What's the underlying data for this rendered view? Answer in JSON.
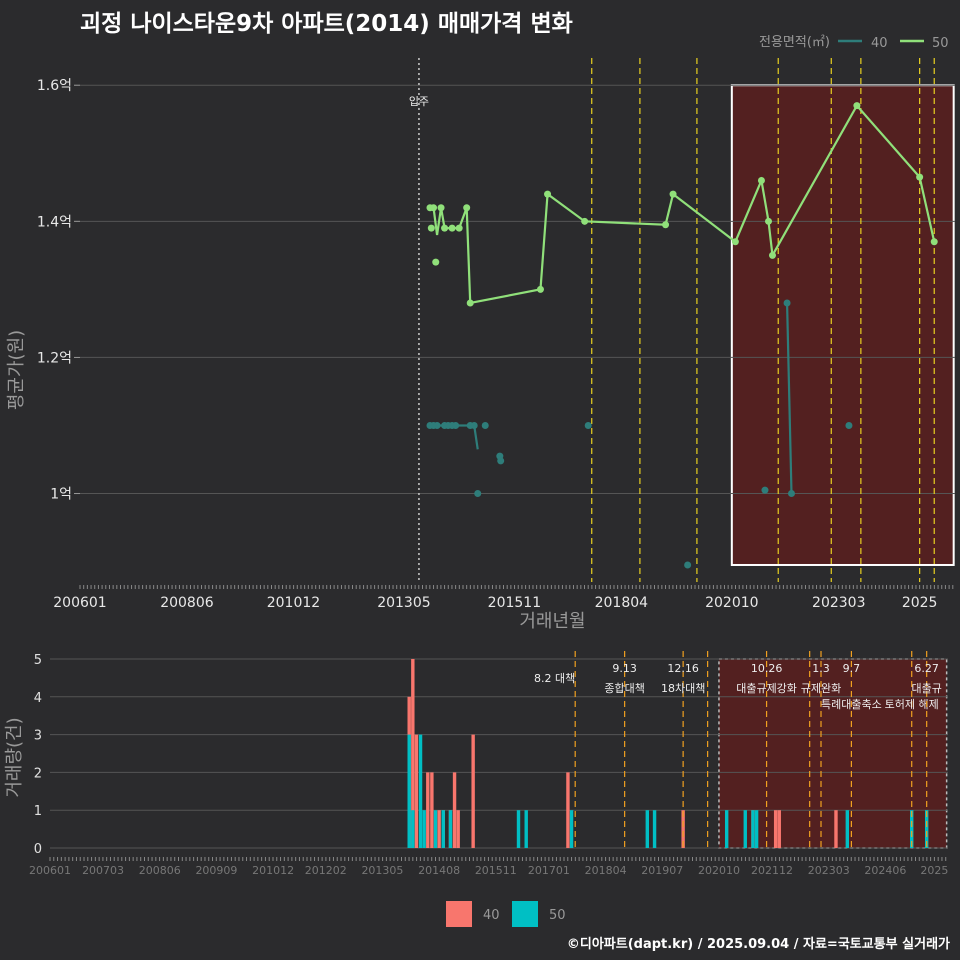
{
  "title": "괴정 나이스타운9차 아파트(2014) 매매가격 변화",
  "credit": "©디아파트(dapt.kr) / 2025.09.04 / 자료=국토교통부 실거래가",
  "colors": {
    "bg": "#2b2b2d",
    "grid": "#555555",
    "line40": "#2e7d7a",
    "line50": "#90e07a",
    "bar40": "#f8766d",
    "bar50": "#00bfc4",
    "vline": "#e8d020",
    "vline2": "#f0a020",
    "highlight": "#5a1e1e",
    "highlight_box": "#ffffff",
    "movein": "#cccccc"
  },
  "chart_data": [
    {
      "type": "line",
      "title": "괴정 나이스타운9차 아파트(2014) 매매가격 변화",
      "xlabel": "거래년월",
      "ylabel": "평균가(원)",
      "ylim": [
        0.87,
        1.64
      ],
      "xlim": [
        2006.0,
        2025.8
      ],
      "yticks": [
        1.0,
        1.2,
        1.4,
        1.6
      ],
      "ytick_labels": [
        "1억",
        "1.2억",
        "1.4억",
        "1.6억"
      ],
      "xticks": [
        2006.0,
        2008.42,
        2010.83,
        2013.33,
        2015.83,
        2018.25,
        2020.75,
        2023.17,
        2025.0
      ],
      "xtick_labels": [
        "200601",
        "200806",
        "201012",
        "201305",
        "201511",
        "201804",
        "202010",
        "202303",
        "2025"
      ],
      "legend": {
        "title": "전용면적(㎡)",
        "position": "top-right",
        "items": [
          "40",
          "50"
        ]
      },
      "movein": {
        "x": 2013.67,
        "label": "입주"
      },
      "highlight_range": [
        2020.75,
        2025.77
      ],
      "policy_lines": [
        2017.58,
        2018.67,
        2019.96,
        2021.8,
        2023.0,
        2023.67,
        2025.0,
        2025.33
      ],
      "series": [
        {
          "name": "40",
          "line": [
            [
              2013.92,
              1.1
            ],
            [
              2014.0,
              1.1
            ],
            [
              2014.17,
              1.1
            ],
            [
              2014.33,
              1.1
            ],
            [
              2014.5,
              1.1
            ],
            [
              2014.67,
              1.1
            ],
            [
              2014.83,
              1.1
            ],
            [
              2014.92,
              1.1
            ],
            [
              2015.0,
              1.065
            ]
          ],
          "line2": [
            [
              2022.0,
              1.28
            ],
            [
              2022.1,
              1.0
            ]
          ],
          "points": [
            [
              2013.92,
              1.1
            ],
            [
              2014.0,
              1.1
            ],
            [
              2014.08,
              1.1
            ],
            [
              2014.25,
              1.1
            ],
            [
              2014.33,
              1.1
            ],
            [
              2014.42,
              1.1
            ],
            [
              2014.5,
              1.1
            ],
            [
              2014.83,
              1.1
            ],
            [
              2014.92,
              1.1
            ],
            [
              2015.0,
              1.0
            ],
            [
              2015.17,
              1.1
            ],
            [
              2015.5,
              1.055
            ],
            [
              2015.52,
              1.048
            ],
            [
              2017.5,
              1.1
            ],
            [
              2019.75,
              0.895
            ],
            [
              2021.5,
              1.005
            ],
            [
              2022.0,
              1.28
            ],
            [
              2022.1,
              1.0
            ],
            [
              2023.4,
              1.1
            ]
          ]
        },
        {
          "name": "50",
          "line": [
            [
              2013.92,
              1.42
            ],
            [
              2014.0,
              1.42
            ],
            [
              2014.08,
              1.38
            ],
            [
              2014.17,
              1.42
            ],
            [
              2014.25,
              1.39
            ],
            [
              2014.42,
              1.39
            ],
            [
              2014.58,
              1.39
            ],
            [
              2014.75,
              1.42
            ],
            [
              2014.83,
              1.28
            ],
            [
              2016.42,
              1.3
            ],
            [
              2016.58,
              1.44
            ],
            [
              2017.42,
              1.4
            ],
            [
              2019.25,
              1.395
            ],
            [
              2019.42,
              1.44
            ],
            [
              2020.83,
              1.37
            ],
            [
              2021.42,
              1.46
            ],
            [
              2021.58,
              1.4
            ],
            [
              2021.67,
              1.35
            ],
            [
              2023.58,
              1.57
            ],
            [
              2025.0,
              1.465
            ],
            [
              2025.33,
              1.37
            ]
          ],
          "points": [
            [
              2013.92,
              1.42
            ],
            [
              2013.95,
              1.39
            ],
            [
              2014.0,
              1.42
            ],
            [
              2014.05,
              1.34
            ],
            [
              2014.17,
              1.42
            ],
            [
              2014.25,
              1.39
            ],
            [
              2014.42,
              1.39
            ],
            [
              2014.58,
              1.39
            ],
            [
              2014.75,
              1.42
            ],
            [
              2014.83,
              1.28
            ],
            [
              2016.42,
              1.3
            ],
            [
              2016.58,
              1.44
            ],
            [
              2017.42,
              1.4
            ],
            [
              2019.25,
              1.395
            ],
            [
              2019.42,
              1.44
            ],
            [
              2020.83,
              1.37
            ],
            [
              2021.42,
              1.46
            ],
            [
              2021.58,
              1.4
            ],
            [
              2021.67,
              1.35
            ],
            [
              2023.58,
              1.57
            ],
            [
              2025.0,
              1.465
            ],
            [
              2025.33,
              1.37
            ]
          ]
        }
      ]
    },
    {
      "type": "bar",
      "ylabel": "거래량(건)",
      "ylim": [
        0,
        5
      ],
      "yticks": [
        0,
        1,
        2,
        3,
        4,
        5
      ],
      "ytick_labels": [
        "0",
        "1",
        "2",
        "3",
        "4",
        "5"
      ],
      "xtick_labels": [
        "200601",
        "200703",
        "200806",
        "200909",
        "201012",
        "201202",
        "201305",
        "201408",
        "201511",
        "201701",
        "201804",
        "201907",
        "202010",
        "202112",
        "202303",
        "202406",
        "2025"
      ],
      "xticks": [
        2006.0,
        2007.17,
        2008.42,
        2009.67,
        2010.92,
        2012.08,
        2013.33,
        2014.58,
        2015.83,
        2017.0,
        2018.25,
        2019.5,
        2020.75,
        2021.92,
        2023.17,
        2024.42,
        2025.5
      ],
      "highlight_range": [
        2020.75,
        2025.77
      ],
      "policy_lines": [
        {
          "x": 2017.58,
          "label": "8.2 대책",
          "label2": ""
        },
        {
          "x": 2018.67,
          "label": "9.13",
          "label2": "종합대책"
        },
        {
          "x": 2019.96,
          "label": "12.16",
          "label2": "18차대책"
        },
        {
          "x": 2020.5,
          "label": "",
          "label2": ""
        },
        {
          "x": 2021.8,
          "label": "10.26",
          "label2": "대출규제강화"
        },
        {
          "x": 2022.75,
          "label": "",
          "label2": ""
        },
        {
          "x": 2023.0,
          "label": "1.3",
          "label2": "규제완화"
        },
        {
          "x": 2023.67,
          "label": "9.7",
          "label2": "특례대출축소"
        },
        {
          "x": 2025.0,
          "label": "",
          "label2": "토허제 해제"
        },
        {
          "x": 2025.33,
          "label": "6.27",
          "label2": "대출규"
        }
      ],
      "series": [
        {
          "name": "40",
          "bars": [
            [
              2013.92,
              4
            ],
            [
              2014.0,
              5
            ],
            [
              2014.08,
              3
            ],
            [
              2014.33,
              2
            ],
            [
              2014.42,
              2
            ],
            [
              2014.58,
              1
            ],
            [
              2014.67,
              1
            ],
            [
              2014.83,
              1
            ],
            [
              2014.92,
              2
            ],
            [
              2015.0,
              1
            ],
            [
              2015.33,
              3
            ],
            [
              2017.42,
              2
            ],
            [
              2019.96,
              1
            ],
            [
              2021.5,
              1
            ],
            [
              2022.0,
              1
            ],
            [
              2022.08,
              1
            ],
            [
              2023.33,
              1
            ]
          ]
        },
        {
          "name": "50",
          "bars": [
            [
              2013.92,
              3
            ],
            [
              2014.0,
              1
            ],
            [
              2014.17,
              3
            ],
            [
              2014.25,
              1
            ],
            [
              2014.5,
              1
            ],
            [
              2014.67,
              1
            ],
            [
              2014.83,
              1
            ],
            [
              2016.33,
              1
            ],
            [
              2016.5,
              1
            ],
            [
              2017.5,
              1
            ],
            [
              2019.17,
              1
            ],
            [
              2019.33,
              1
            ],
            [
              2020.92,
              1
            ],
            [
              2021.33,
              1
            ],
            [
              2021.5,
              1
            ],
            [
              2021.58,
              1
            ],
            [
              2023.58,
              1
            ],
            [
              2025.0,
              1
            ],
            [
              2025.33,
              1
            ]
          ]
        }
      ],
      "legend": {
        "position": "bottom",
        "items": [
          "40",
          "50"
        ]
      }
    }
  ]
}
